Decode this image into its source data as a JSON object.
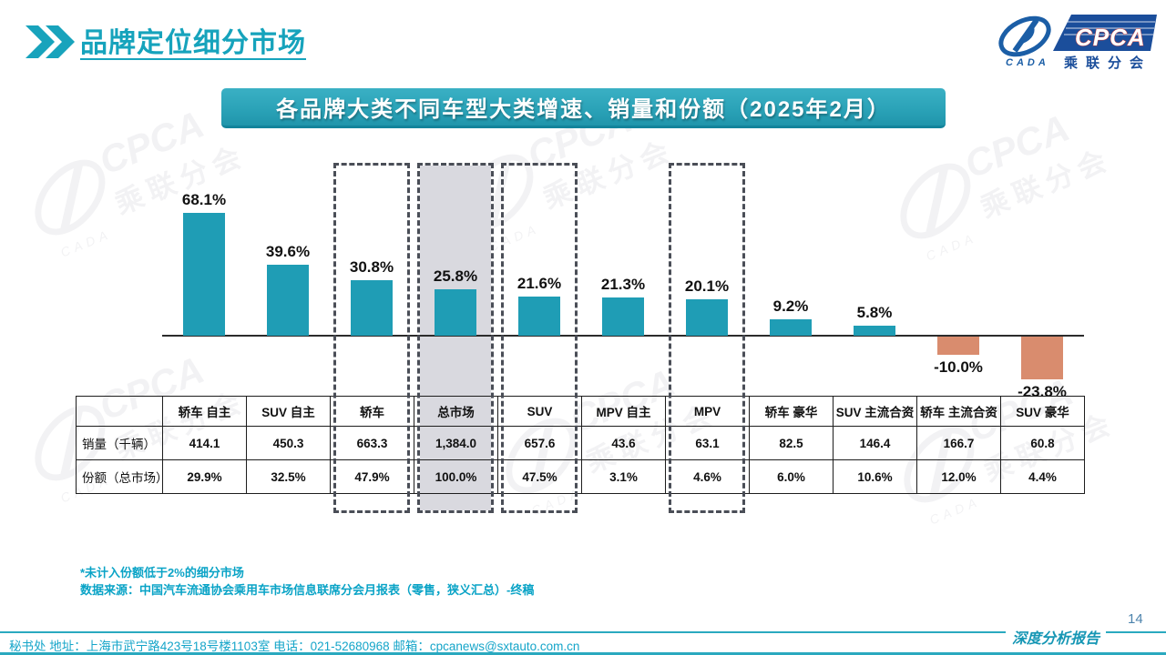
{
  "page": {
    "title": "品牌定位细分市场",
    "page_number": "14",
    "report_label": "深度分析报告"
  },
  "logo": {
    "cpca": "CPCA",
    "cada": "CADA",
    "subtitle": "乘联分会"
  },
  "banner": {
    "title": "各品牌大类不同车型大类增速、销量和份额（2025年2月）"
  },
  "chart_data": {
    "type": "bar",
    "title": "各品牌大类不同车型大类增速、销量和份额（2025年2月）",
    "categories": [
      "轿车 自主",
      "SUV 自主",
      "轿车",
      "总市场",
      "SUV",
      "MPV 自主",
      "MPV",
      "轿车 豪华",
      "SUV 主流合资",
      "轿车 主流合资",
      "SUV 豪华"
    ],
    "series": [
      {
        "name": "增速(%)",
        "values": [
          68.1,
          39.6,
          30.8,
          25.8,
          21.6,
          21.3,
          20.1,
          9.2,
          5.8,
          -10.0,
          -23.8
        ]
      }
    ],
    "bar_labels": [
      "68.1%",
      "39.6%",
      "30.8%",
      "25.8%",
      "21.6%",
      "21.3%",
      "20.1%",
      "9.2%",
      "5.8%",
      "-10.0%",
      "-23.8%"
    ],
    "sales_thousand_units": [
      414.1,
      450.3,
      663.3,
      1384.0,
      657.6,
      43.6,
      63.1,
      82.5,
      146.4,
      166.7,
      60.8
    ],
    "share_of_total_market_pct": [
      29.9,
      32.5,
      47.9,
      100.0,
      47.5,
      3.1,
      4.6,
      6.0,
      10.6,
      12.0,
      4.4
    ],
    "highlight_indices": [
      2,
      3,
      4,
      6
    ],
    "filled_highlight_index": 3,
    "ylim": [
      -30,
      75
    ],
    "grid": false,
    "legend": false,
    "colors": {
      "positive": "#1F9DB5",
      "negative": "#D98C6E",
      "highlight_fill": "#D9D9DF",
      "dashed_border": "#4A4E57"
    }
  },
  "table": {
    "corner": "",
    "columns": [
      "轿车 自主",
      "SUV 自主",
      "轿车",
      "总市场",
      "SUV",
      "MPV 自主",
      "MPV",
      "轿车 豪华",
      "SUV 主流合资",
      "轿车 主流合资",
      "SUV 豪华"
    ],
    "rows": [
      {
        "label": "销量（千辆）",
        "values": [
          "414.1",
          "450.3",
          "663.3",
          "1,384.0",
          "657.6",
          "43.6",
          "63.1",
          "82.5",
          "146.4",
          "166.7",
          "60.8"
        ]
      },
      {
        "label": "份额（总市场）",
        "values": [
          "29.9%",
          "32.5%",
          "47.9%",
          "100.0%",
          "47.5%",
          "3.1%",
          "4.6%",
          "6.0%",
          "10.6%",
          "12.0%",
          "4.4%"
        ]
      }
    ]
  },
  "footnotes": [
    "*未计入份额低于2%的细分市场",
    "数据来源：中国汽车流通协会乘用车市场信息联席分会月报表（零售，狭义汇总）-终稿"
  ],
  "footer": {
    "text": "秘书处  地址：上海市武宁路423号18号楼1103室 电话：021-52680968  邮箱：cpcanews@sxtauto.com.cn"
  },
  "watermark": {
    "text_main": "CPCA",
    "text_sub": "乘联分会",
    "text_small": "CADA"
  }
}
